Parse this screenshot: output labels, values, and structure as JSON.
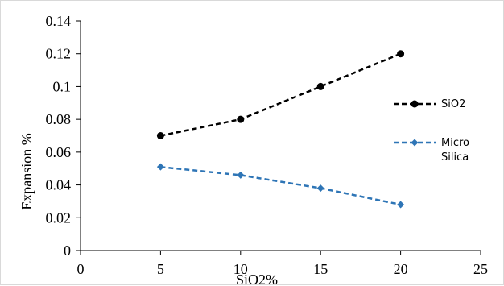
{
  "chart_data": {
    "type": "line",
    "xlabel": "SiO2%",
    "ylabel": "Expansion %",
    "xlim": [
      0,
      25
    ],
    "ylim": [
      0,
      0.14
    ],
    "x_ticks": [
      "0",
      "5",
      "10",
      "15",
      "20",
      "25"
    ],
    "y_ticks": [
      "0",
      "0.02",
      "0.04",
      "0.06",
      "0.08",
      "0.1",
      "0.12",
      "0.14"
    ],
    "grid": false,
    "legend_position": "right",
    "series": [
      {
        "name": "SiO2",
        "color": "#000000",
        "marker": "circle",
        "line_style": "dashed",
        "points": [
          [
            5,
            0.07
          ],
          [
            10,
            0.08
          ],
          [
            15,
            0.1
          ],
          [
            20,
            0.12
          ]
        ]
      },
      {
        "name": "Micro Silica",
        "legend_lines": [
          "Micro",
          "Silica"
        ],
        "color": "#2e75b6",
        "marker": "diamond",
        "line_style": "dashed",
        "points": [
          [
            5,
            0.051
          ],
          [
            10,
            0.046
          ],
          [
            15,
            0.038
          ],
          [
            20,
            0.028
          ]
        ]
      }
    ]
  }
}
